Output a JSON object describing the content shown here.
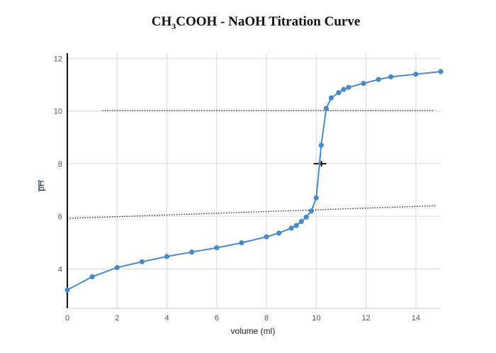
{
  "chart_data": {
    "type": "line",
    "title": "CH3COOH - NaOH Titration Curve",
    "title_parts": {
      "a": "CH",
      "sub": "3",
      "b": "COOH - NaOH Titration Curve"
    },
    "xlabel": "volume (ml)",
    "ylabel": "pH",
    "xlim": [
      0,
      15
    ],
    "ylim": [
      2.5,
      12.2
    ],
    "xticks": [
      0,
      2,
      4,
      6,
      8,
      10,
      12,
      14
    ],
    "yticks": [
      4,
      6,
      8,
      10,
      12
    ],
    "grid": true,
    "series": [
      {
        "color": "#4a8ac4",
        "x": [
          0,
          1,
          2,
          3,
          4,
          5,
          6,
          7,
          8,
          8.5,
          9,
          9.2,
          9.4,
          9.6,
          9.8,
          10,
          10.2,
          10.4,
          10.6,
          10.9,
          11.1,
          11.3,
          11.9,
          12.5,
          13,
          14,
          15
        ],
        "y": [
          3.2,
          3.7,
          4.05,
          4.27,
          4.47,
          4.64,
          4.8,
          4.99,
          5.22,
          5.36,
          5.55,
          5.65,
          5.8,
          5.97,
          6.2,
          6.7,
          8.7,
          10.1,
          10.5,
          10.7,
          10.82,
          10.9,
          11.05,
          11.2,
          11.3,
          11.4,
          11.5
        ]
      }
    ],
    "annotations": [
      {
        "type": "dotted-line",
        "x": [
          1.4,
          14.7
        ],
        "y": [
          10.02,
          10.02
        ],
        "color": "#222222"
      },
      {
        "type": "dotted-line",
        "x": [
          0,
          14.8
        ],
        "y": [
          5.92,
          6.4
        ],
        "color": "#222222"
      },
      {
        "type": "marker",
        "x": 10.15,
        "y": 8.0,
        "color": "#111111"
      }
    ]
  }
}
